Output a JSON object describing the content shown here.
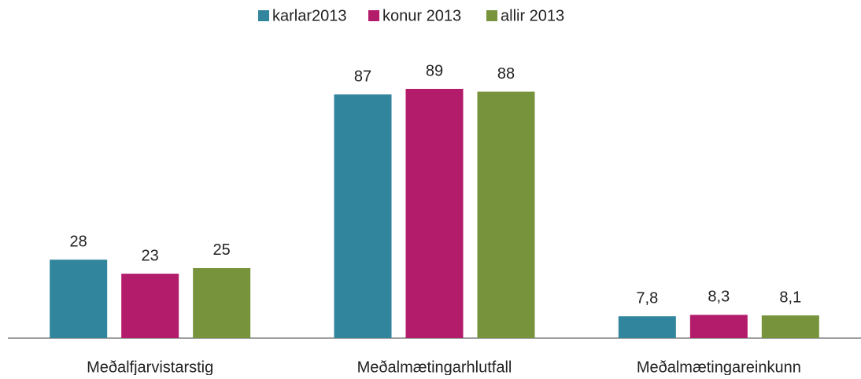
{
  "chart_data": {
    "type": "bar",
    "categories": [
      "Meðalfjarvistarstig",
      "Meðalmætingarhlutfall",
      "Meðalmætingareinkunn"
    ],
    "series": [
      {
        "name": "karlar2013",
        "color": "#31859c",
        "values": [
          28,
          87,
          7.8
        ],
        "value_labels": [
          "28",
          "87",
          "7,8"
        ]
      },
      {
        "name": "konur 2013",
        "color": "#b31b6b",
        "values": [
          23,
          89,
          8.3
        ],
        "value_labels": [
          "23",
          "89",
          "8,3"
        ]
      },
      {
        "name": "allir 2013",
        "color": "#77933c",
        "values": [
          25,
          88,
          8.1
        ],
        "value_labels": [
          "25",
          "88",
          "8,1"
        ]
      }
    ],
    "legend": "top"
  }
}
